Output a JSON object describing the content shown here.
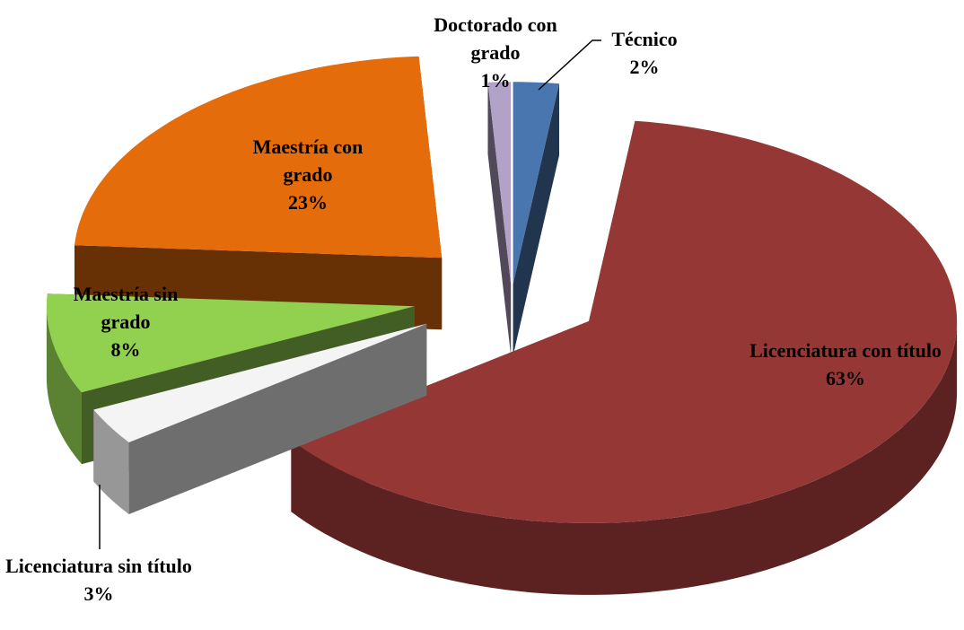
{
  "chart_data": {
    "type": "pie",
    "categories": [
      "Técnico",
      "Licenciatura con título",
      "Licenciatura sin título",
      "Maestría sin grado",
      "Maestría con grado",
      "Doctorado con grado"
    ],
    "values": [
      2,
      63,
      3,
      8,
      23,
      1
    ],
    "value_labels": [
      "2%",
      "63%",
      "3%",
      "8%",
      "23%",
      "1%"
    ],
    "colors": [
      "#4a76b0",
      "#953735",
      "#f4f4f4",
      "#92d050",
      "#e46c0a",
      "#b3a2c7"
    ]
  }
}
